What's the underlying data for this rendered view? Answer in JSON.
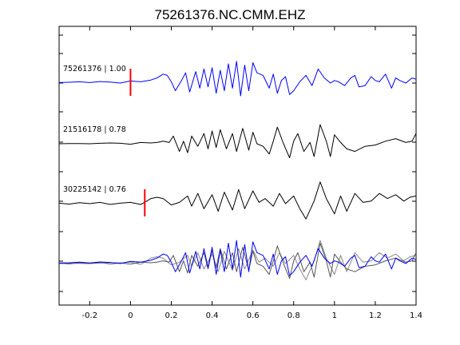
{
  "chart_data": {
    "type": "line",
    "title": "75261376.NC.CMM.EHZ",
    "xlabel": "",
    "ylabel": "",
    "xlim": [
      -0.35,
      1.4
    ],
    "x_ticks": [
      -0.2,
      0,
      0.2,
      0.4,
      0.6,
      0.8,
      1,
      1.2,
      1.4
    ],
    "x_tick_labels": [
      "-0.2",
      "0",
      "0.2",
      "0.4",
      "0.6",
      "0.8",
      "1",
      "1.2",
      "1.4"
    ],
    "grid": false,
    "colors": {
      "primary": "#0000ff",
      "secondary": "#000000",
      "overlay": "#888888",
      "pick": "#ff0000"
    },
    "traces": [
      {
        "label": "75261376 | 1.00",
        "color": "#0000ff",
        "pick_time": 0.0,
        "x": [
          -0.35,
          -0.3,
          -0.25,
          -0.2,
          -0.15,
          -0.1,
          -0.05,
          0,
          0.05,
          0.1,
          0.13,
          0.16,
          0.18,
          0.2,
          0.22,
          0.25,
          0.27,
          0.29,
          0.32,
          0.34,
          0.36,
          0.38,
          0.4,
          0.42,
          0.44,
          0.46,
          0.48,
          0.5,
          0.52,
          0.54,
          0.56,
          0.58,
          0.6,
          0.62,
          0.65,
          0.68,
          0.7,
          0.72,
          0.74,
          0.76,
          0.78,
          0.8,
          0.83,
          0.86,
          0.89,
          0.92,
          0.95,
          0.98,
          1.0,
          1.02,
          1.05,
          1.08,
          1.1,
          1.12,
          1.15,
          1.18,
          1.2,
          1.22,
          1.25,
          1.28,
          1.3,
          1.32,
          1.35,
          1.38,
          1.4
        ],
        "y": [
          0.02,
          0.03,
          0.05,
          0.02,
          0.06,
          0.04,
          0.0,
          0.08,
          0.05,
          0.12,
          0.2,
          0.35,
          0.3,
          0.05,
          -0.3,
          0.1,
          0.4,
          -0.35,
          0.45,
          -0.2,
          0.55,
          -0.15,
          0.6,
          -0.4,
          0.5,
          -0.3,
          0.75,
          -0.2,
          0.85,
          -0.5,
          0.7,
          -0.3,
          0.8,
          0.4,
          0.3,
          -0.2,
          0.35,
          -0.4,
          0.1,
          0.25,
          -0.45,
          -0.3,
          0.05,
          0.3,
          -0.1,
          0.55,
          0.2,
          0.0,
          0.1,
          0.05,
          -0.1,
          0.2,
          0.3,
          -0.15,
          -0.1,
          0.25,
          0.1,
          0.05,
          0.35,
          -0.2,
          0.2,
          0.1,
          0.0,
          0.2,
          0.15
        ]
      },
      {
        "label": "21516178 | 0.78",
        "color": "#000000",
        "pick_time": null,
        "x": [
          -0.35,
          -0.3,
          -0.25,
          -0.2,
          -0.15,
          -0.1,
          -0.05,
          0,
          0.05,
          0.1,
          0.13,
          0.16,
          0.19,
          0.21,
          0.24,
          0.26,
          0.28,
          0.3,
          0.33,
          0.36,
          0.38,
          0.4,
          0.42,
          0.44,
          0.47,
          0.5,
          0.52,
          0.55,
          0.58,
          0.6,
          0.62,
          0.65,
          0.68,
          0.7,
          0.72,
          0.75,
          0.78,
          0.8,
          0.82,
          0.85,
          0.88,
          0.9,
          0.93,
          0.96,
          0.98,
          1.0,
          1.03,
          1.06,
          1.1,
          1.15,
          1.2,
          1.25,
          1.3,
          1.35,
          1.38,
          1.4
        ],
        "y": [
          0.0,
          0.01,
          0.01,
          0.0,
          0.02,
          0.03,
          0.02,
          -0.02,
          0.05,
          0.03,
          0.05,
          0.1,
          0.05,
          0.3,
          -0.3,
          0.1,
          -0.35,
          0.3,
          -0.1,
          0.4,
          -0.2,
          0.5,
          -0.15,
          0.55,
          -0.2,
          0.4,
          -0.3,
          0.6,
          -0.25,
          0.45,
          0.0,
          -0.1,
          -0.4,
          0.1,
          0.65,
          0.0,
          -0.55,
          0.1,
          0.4,
          -0.3,
          0.05,
          -0.5,
          0.75,
          0.1,
          -0.5,
          0.35,
          0.05,
          -0.2,
          -0.3,
          -0.1,
          -0.05,
          0.1,
          0.2,
          0.05,
          0.1,
          0.4
        ]
      },
      {
        "label": "30225142 | 0.76",
        "color": "#000000",
        "pick_time": 0.07,
        "x": [
          -0.35,
          -0.3,
          -0.25,
          -0.2,
          -0.15,
          -0.1,
          -0.05,
          0,
          0.05,
          0.08,
          0.1,
          0.13,
          0.16,
          0.2,
          0.24,
          0.28,
          0.3,
          0.33,
          0.36,
          0.4,
          0.43,
          0.46,
          0.5,
          0.53,
          0.56,
          0.6,
          0.63,
          0.66,
          0.7,
          0.73,
          0.76,
          0.8,
          0.83,
          0.86,
          0.9,
          0.93,
          0.96,
          1.0,
          1.03,
          1.06,
          1.1,
          1.14,
          1.18,
          1.22,
          1.26,
          1.3,
          1.34,
          1.37,
          1.4
        ],
        "y": [
          0.02,
          -0.02,
          0.04,
          0.0,
          0.05,
          -0.03,
          0.02,
          0.05,
          -0.03,
          0.1,
          0.2,
          0.25,
          0.2,
          -0.05,
          0.05,
          0.3,
          -0.1,
          0.4,
          -0.2,
          0.35,
          -0.3,
          0.45,
          -0.25,
          0.55,
          -0.2,
          0.5,
          0.05,
          0.2,
          -0.1,
          0.4,
          0.0,
          0.3,
          -0.2,
          -0.6,
          0.1,
          0.85,
          0.2,
          -0.4,
          0.3,
          -0.3,
          0.4,
          0.05,
          0.1,
          0.4,
          0.2,
          0.35,
          0.1,
          0.25,
          0.3
        ]
      }
    ]
  }
}
